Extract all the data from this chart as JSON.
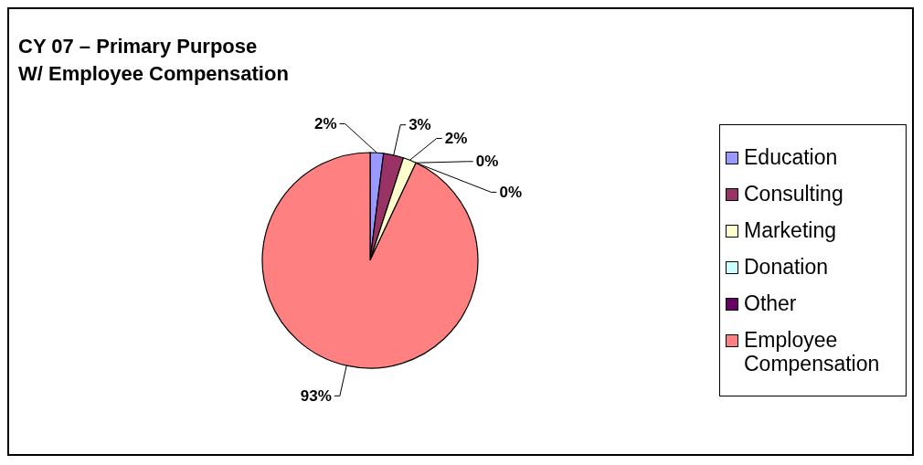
{
  "chart_data": {
    "type": "pie",
    "title": "CY 07 – Primary Purpose\nW/ Employee Compensation",
    "categories": [
      "Education",
      "Consulting",
      "Marketing",
      "Donation",
      "Other",
      "Employee Compensation"
    ],
    "values": [
      2,
      3,
      2,
      0,
      0,
      93
    ],
    "colors": [
      "#9999ff",
      "#993366",
      "#ffffcc",
      "#ccffff",
      "#660066",
      "#ff8080"
    ],
    "value_labels": [
      "2%",
      "3%",
      "2%",
      "0%",
      "0%",
      "93%"
    ],
    "legend": "right"
  }
}
